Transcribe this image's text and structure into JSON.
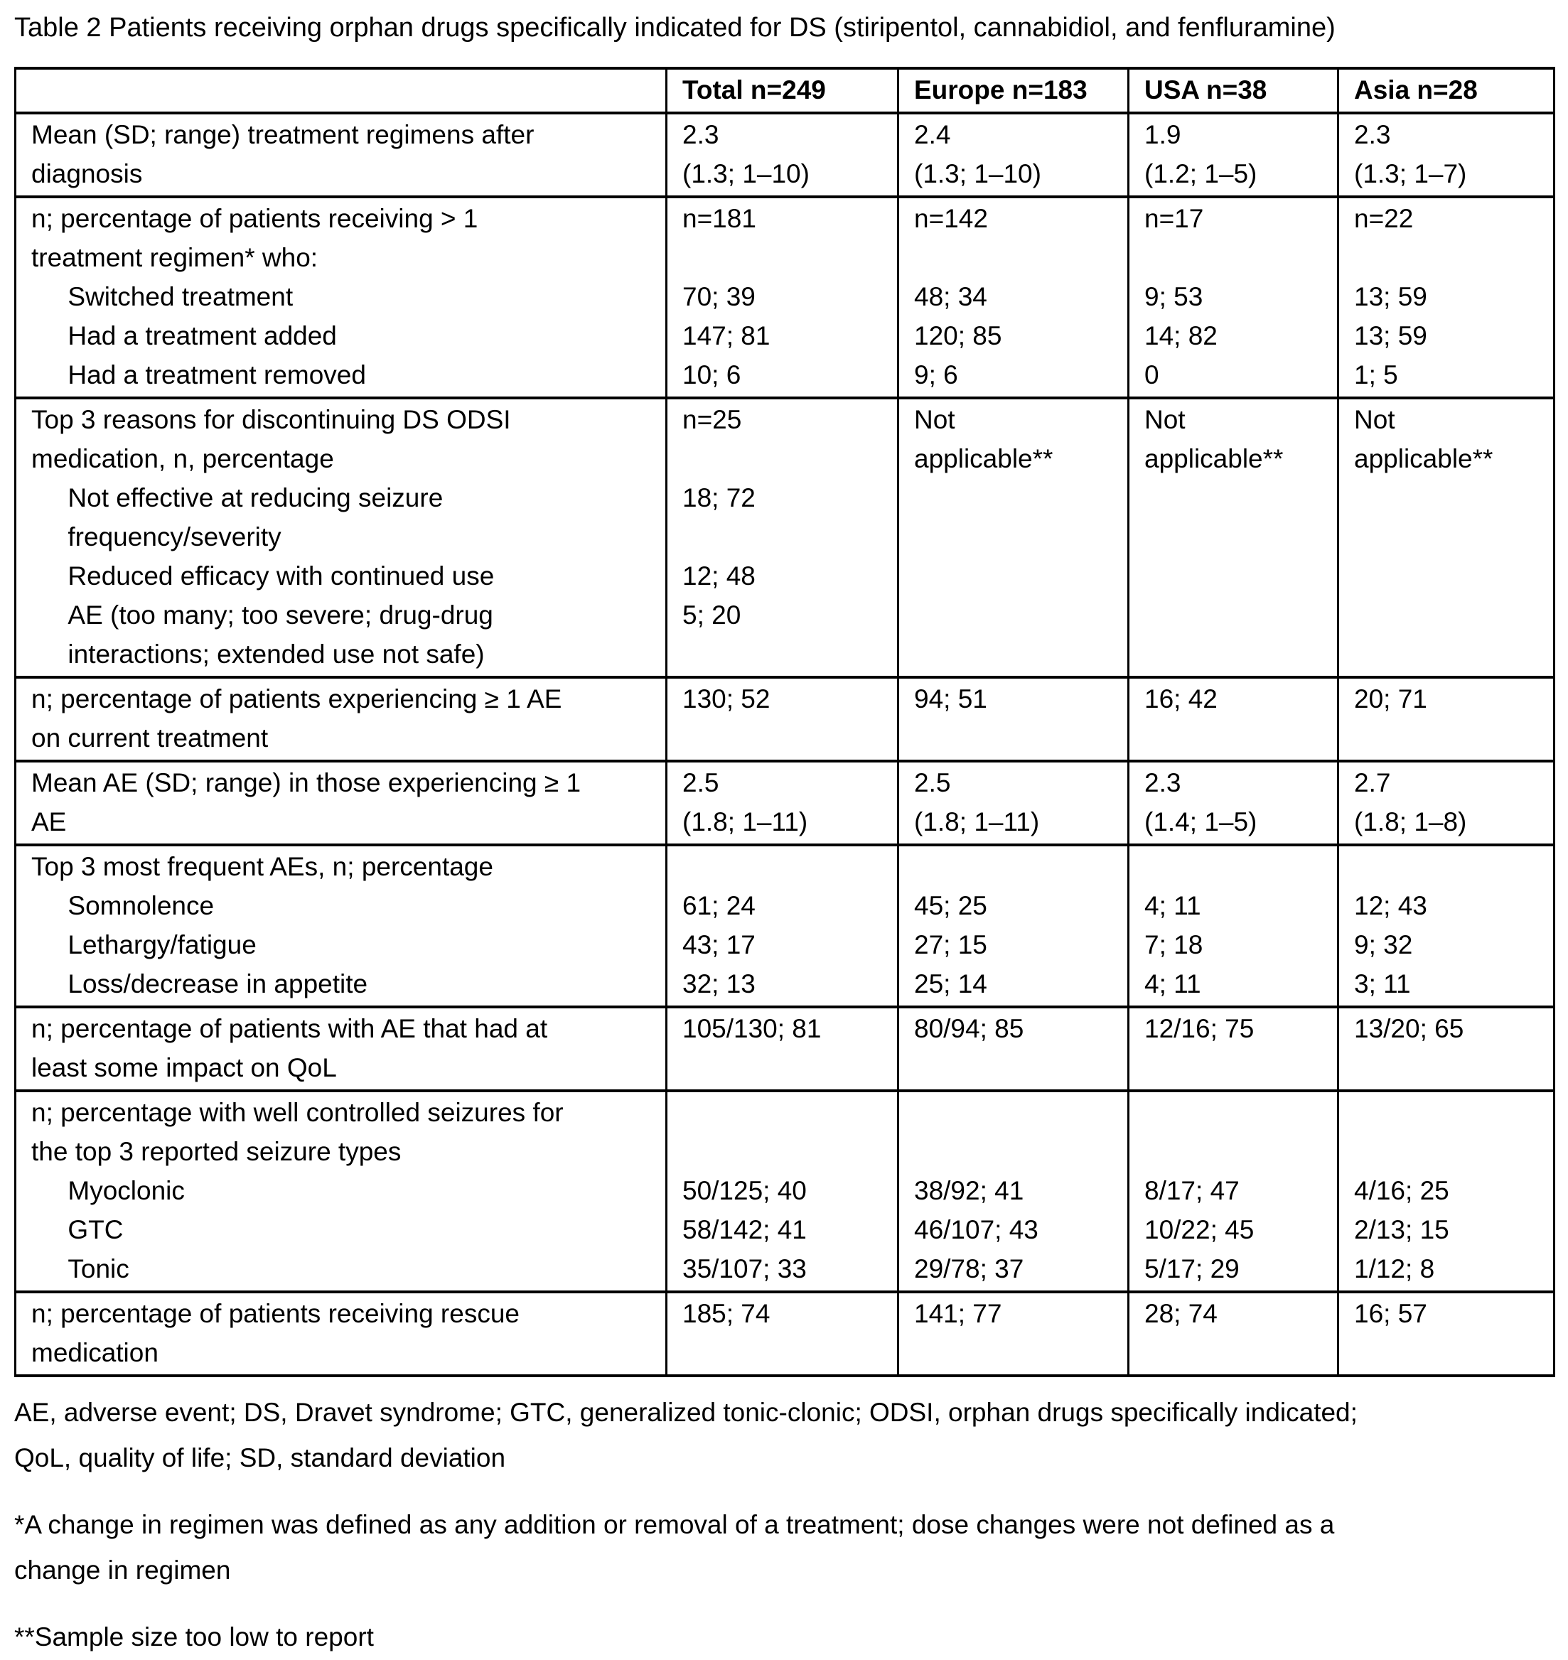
{
  "title": "Table 2 Patients receiving orphan drugs specifically indicated for DS (stiripentol, cannabidiol, and fenfluramine)",
  "table": {
    "header": [
      "",
      "Total n=249",
      "Europe n=183",
      "USA n=38",
      "Asia n=28"
    ],
    "rows": [
      {
        "label": "Mean (SD; range) treatment regimens after\ndiagnosis",
        "total": "2.3\n(1.3; 1–10)",
        "europe": "2.4\n(1.3; 1–10)",
        "usa": "1.9\n(1.2; 1–5)",
        "asia": "2.3\n(1.3; 1–7)"
      },
      {
        "label": "n; percentage of patients receiving > 1\ntreatment regimen* who:\n     Switched treatment\n     Had a treatment added\n     Had a treatment removed",
        "total": "n=181\n\n70; 39\n147; 81\n10; 6",
        "europe": "n=142\n\n48; 34\n120; 85\n9; 6",
        "usa": "n=17\n\n9; 53\n14; 82\n0",
        "asia": "n=22\n\n13; 59\n13; 59\n1; 5"
      },
      {
        "label": "Top 3 reasons for discontinuing DS ODSI\nmedication, n, percentage\n     Not effective at reducing seizure\n     frequency/severity\n     Reduced efficacy with continued use\n     AE (too many; too severe; drug-drug\n     interactions; extended use not safe)",
        "total": "n=25\n\n18; 72\n\n12; 48\n5; 20",
        "europe": "Not\napplicable**",
        "usa": "Not\napplicable**",
        "asia": "Not\napplicable**"
      },
      {
        "label": "n; percentage of patients experiencing ≥ 1 AE\non current treatment",
        "total": "130; 52",
        "europe": "94; 51",
        "usa": "16; 42",
        "asia": "20; 71"
      },
      {
        "label": "Mean AE (SD; range) in those experiencing ≥ 1\nAE",
        "total": "2.5\n(1.8; 1–11)",
        "europe": "2.5\n(1.8; 1–11)",
        "usa": "2.3\n(1.4; 1–5)",
        "asia": "2.7\n(1.8; 1–8)"
      },
      {
        "label": "Top 3 most frequent AEs, n; percentage\n     Somnolence\n     Lethargy/fatigue\n     Loss/decrease in appetite",
        "total": "\n61; 24\n43; 17\n32; 13",
        "europe": "\n45; 25\n27; 15\n25; 14",
        "usa": "\n4; 11\n7; 18\n4; 11",
        "asia": "\n12; 43\n9; 32\n3; 11"
      },
      {
        "label": "n; percentage of patients with AE that had at\nleast some impact on QoL",
        "total": "105/130; 81",
        "europe": "80/94; 85",
        "usa": "12/16; 75",
        "asia": "13/20; 65"
      },
      {
        "label": "n; percentage with well controlled seizures for\nthe top 3 reported seizure types\n     Myoclonic\n     GTC\n     Tonic",
        "total": "\n\n50/125; 40\n58/142; 41\n35/107; 33",
        "europe": "\n\n38/92; 41\n46/107; 43\n29/78; 37",
        "usa": "\n\n8/17; 47\n10/22; 45\n5/17; 29",
        "asia": "\n\n4/16; 25\n2/13; 15\n1/12; 8"
      },
      {
        "label": "n; percentage of patients receiving rescue\nmedication",
        "total": "185; 74",
        "europe": "141; 77",
        "usa": "28; 74",
        "asia": "16; 57"
      }
    ]
  },
  "footnotes": {
    "abbreviations": "AE, adverse event; DS, Dravet syndrome; GTC, generalized tonic-clonic; ODSI, orphan drugs specifically indicated;\nQoL, quality of life; SD, standard deviation",
    "regimen_change": "*A change in regimen was defined as any addition or removal of a treatment; dose changes were not defined as a\nchange in regimen",
    "sample_size": "**Sample size too low to report"
  }
}
